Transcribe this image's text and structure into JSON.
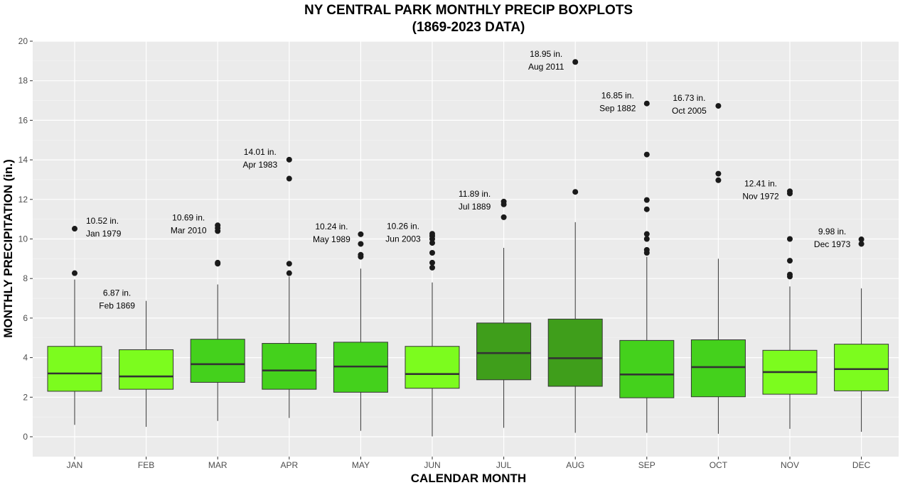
{
  "chart_data": {
    "type": "boxplot",
    "title": "NY CENTRAL PARK MONTHLY PRECIP BOXPLOTS",
    "subtitle": "(1869-2023 DATA)",
    "xlabel": "CALENDAR MONTH",
    "ylabel": "MONTHLY PRECIPITATION (in.)",
    "ylim": [
      -1,
      20
    ],
    "yticks": [
      0,
      2,
      4,
      6,
      8,
      10,
      12,
      14,
      16,
      18,
      20
    ],
    "grid": true,
    "categories": [
      "JAN",
      "FEB",
      "MAR",
      "APR",
      "MAY",
      "JUN",
      "JUL",
      "AUG",
      "SEP",
      "OCT",
      "NOV",
      "DEC"
    ],
    "boxes": [
      {
        "category": "JAN",
        "min": 0.6,
        "q1": 2.3,
        "median": 3.2,
        "q3": 4.57,
        "max": 7.95,
        "outliers": [
          8.27,
          10.52
        ],
        "color": "#7cfc1e"
      },
      {
        "category": "FEB",
        "min": 0.5,
        "q1": 2.4,
        "median": 3.05,
        "q3": 4.4,
        "max": 6.87,
        "outliers": [],
        "color": "#7cfc1e"
      },
      {
        "category": "MAR",
        "min": 0.8,
        "q1": 2.75,
        "median": 3.67,
        "q3": 4.93,
        "max": 7.7,
        "outliers": [
          8.75,
          8.8,
          10.4,
          10.55,
          10.69
        ],
        "color": "#44d11c"
      },
      {
        "category": "APR",
        "min": 0.95,
        "q1": 2.4,
        "median": 3.35,
        "q3": 4.72,
        "max": 8.1,
        "outliers": [
          8.27,
          8.75,
          13.05,
          14.01
        ],
        "color": "#44d11c"
      },
      {
        "category": "MAY",
        "min": 0.3,
        "q1": 2.25,
        "median": 3.55,
        "q3": 4.78,
        "max": 8.5,
        "outliers": [
          9.1,
          9.2,
          9.75,
          10.24
        ],
        "color": "#44d11c"
      },
      {
        "category": "JUN",
        "min": 0.02,
        "q1": 2.45,
        "median": 3.17,
        "q3": 4.57,
        "max": 7.8,
        "outliers": [
          8.55,
          8.8,
          9.3,
          9.8,
          10.0,
          10.15,
          10.26
        ],
        "color": "#7cfc1e"
      },
      {
        "category": "JUL",
        "min": 0.45,
        "q1": 2.88,
        "median": 4.23,
        "q3": 5.75,
        "max": 9.55,
        "outliers": [
          11.1,
          11.75,
          11.89
        ],
        "color": "#3f9e1b"
      },
      {
        "category": "AUG",
        "min": 0.2,
        "q1": 2.55,
        "median": 3.97,
        "q3": 5.95,
        "max": 10.85,
        "outliers": [
          12.38,
          18.95
        ],
        "color": "#3f9e1b"
      },
      {
        "category": "SEP",
        "min": 0.2,
        "q1": 1.97,
        "median": 3.15,
        "q3": 4.87,
        "max": 9.1,
        "outliers": [
          9.3,
          9.45,
          10.0,
          10.25,
          11.5,
          11.97,
          14.27,
          16.85
        ],
        "color": "#44d11c"
      },
      {
        "category": "OCT",
        "min": 0.15,
        "q1": 2.02,
        "median": 3.52,
        "q3": 4.9,
        "max": 9.0,
        "outliers": [
          12.97,
          13.3,
          16.73
        ],
        "color": "#44d11c"
      },
      {
        "category": "NOV",
        "min": 0.4,
        "q1": 2.15,
        "median": 3.27,
        "q3": 4.37,
        "max": 7.6,
        "outliers": [
          8.1,
          8.2,
          8.9,
          10.0,
          12.3,
          12.41
        ],
        "color": "#7cfc1e"
      },
      {
        "category": "DEC",
        "min": 0.25,
        "q1": 2.32,
        "median": 3.42,
        "q3": 4.68,
        "max": 7.5,
        "outliers": [
          9.75,
          9.98
        ],
        "color": "#7cfc1e"
      }
    ],
    "annotations": [
      {
        "category": "JAN",
        "value": 10.52,
        "line1": "10.52 in.",
        "line2": "Jan 1979",
        "side": "right"
      },
      {
        "category": "FEB",
        "value": 6.87,
        "line1": "6.87 in.",
        "line2": "Feb 1869",
        "side": "left"
      },
      {
        "category": "MAR",
        "value": 10.69,
        "line1": "10.69 in.",
        "line2": "Mar 2010",
        "side": "left"
      },
      {
        "category": "APR",
        "value": 14.01,
        "line1": "14.01 in.",
        "line2": "Apr 1983",
        "side": "left"
      },
      {
        "category": "MAY",
        "value": 10.24,
        "line1": "10.24 in.",
        "line2": "May 1989",
        "side": "left"
      },
      {
        "category": "JUN",
        "value": 10.26,
        "line1": "10.26 in.",
        "line2": "Jun 2003",
        "side": "left"
      },
      {
        "category": "JUL",
        "value": 11.89,
        "line1": "11.89 in.",
        "line2": "Jul 1889",
        "side": "left"
      },
      {
        "category": "AUG",
        "value": 18.95,
        "line1": "18.95 in.",
        "line2": "Aug 2011",
        "side": "left"
      },
      {
        "category": "SEP",
        "value": 16.85,
        "line1": "16.85 in.",
        "line2": "Sep 1882",
        "side": "left"
      },
      {
        "category": "OCT",
        "value": 16.73,
        "line1": "16.73 in.",
        "line2": "Oct 2005",
        "side": "left"
      },
      {
        "category": "NOV",
        "value": 12.41,
        "line1": "12.41 in.",
        "line2": "Nov 1972",
        "side": "left"
      },
      {
        "category": "DEC",
        "value": 9.98,
        "line1": "9.98 in.",
        "line2": "Dec 1973",
        "side": "left"
      }
    ]
  }
}
